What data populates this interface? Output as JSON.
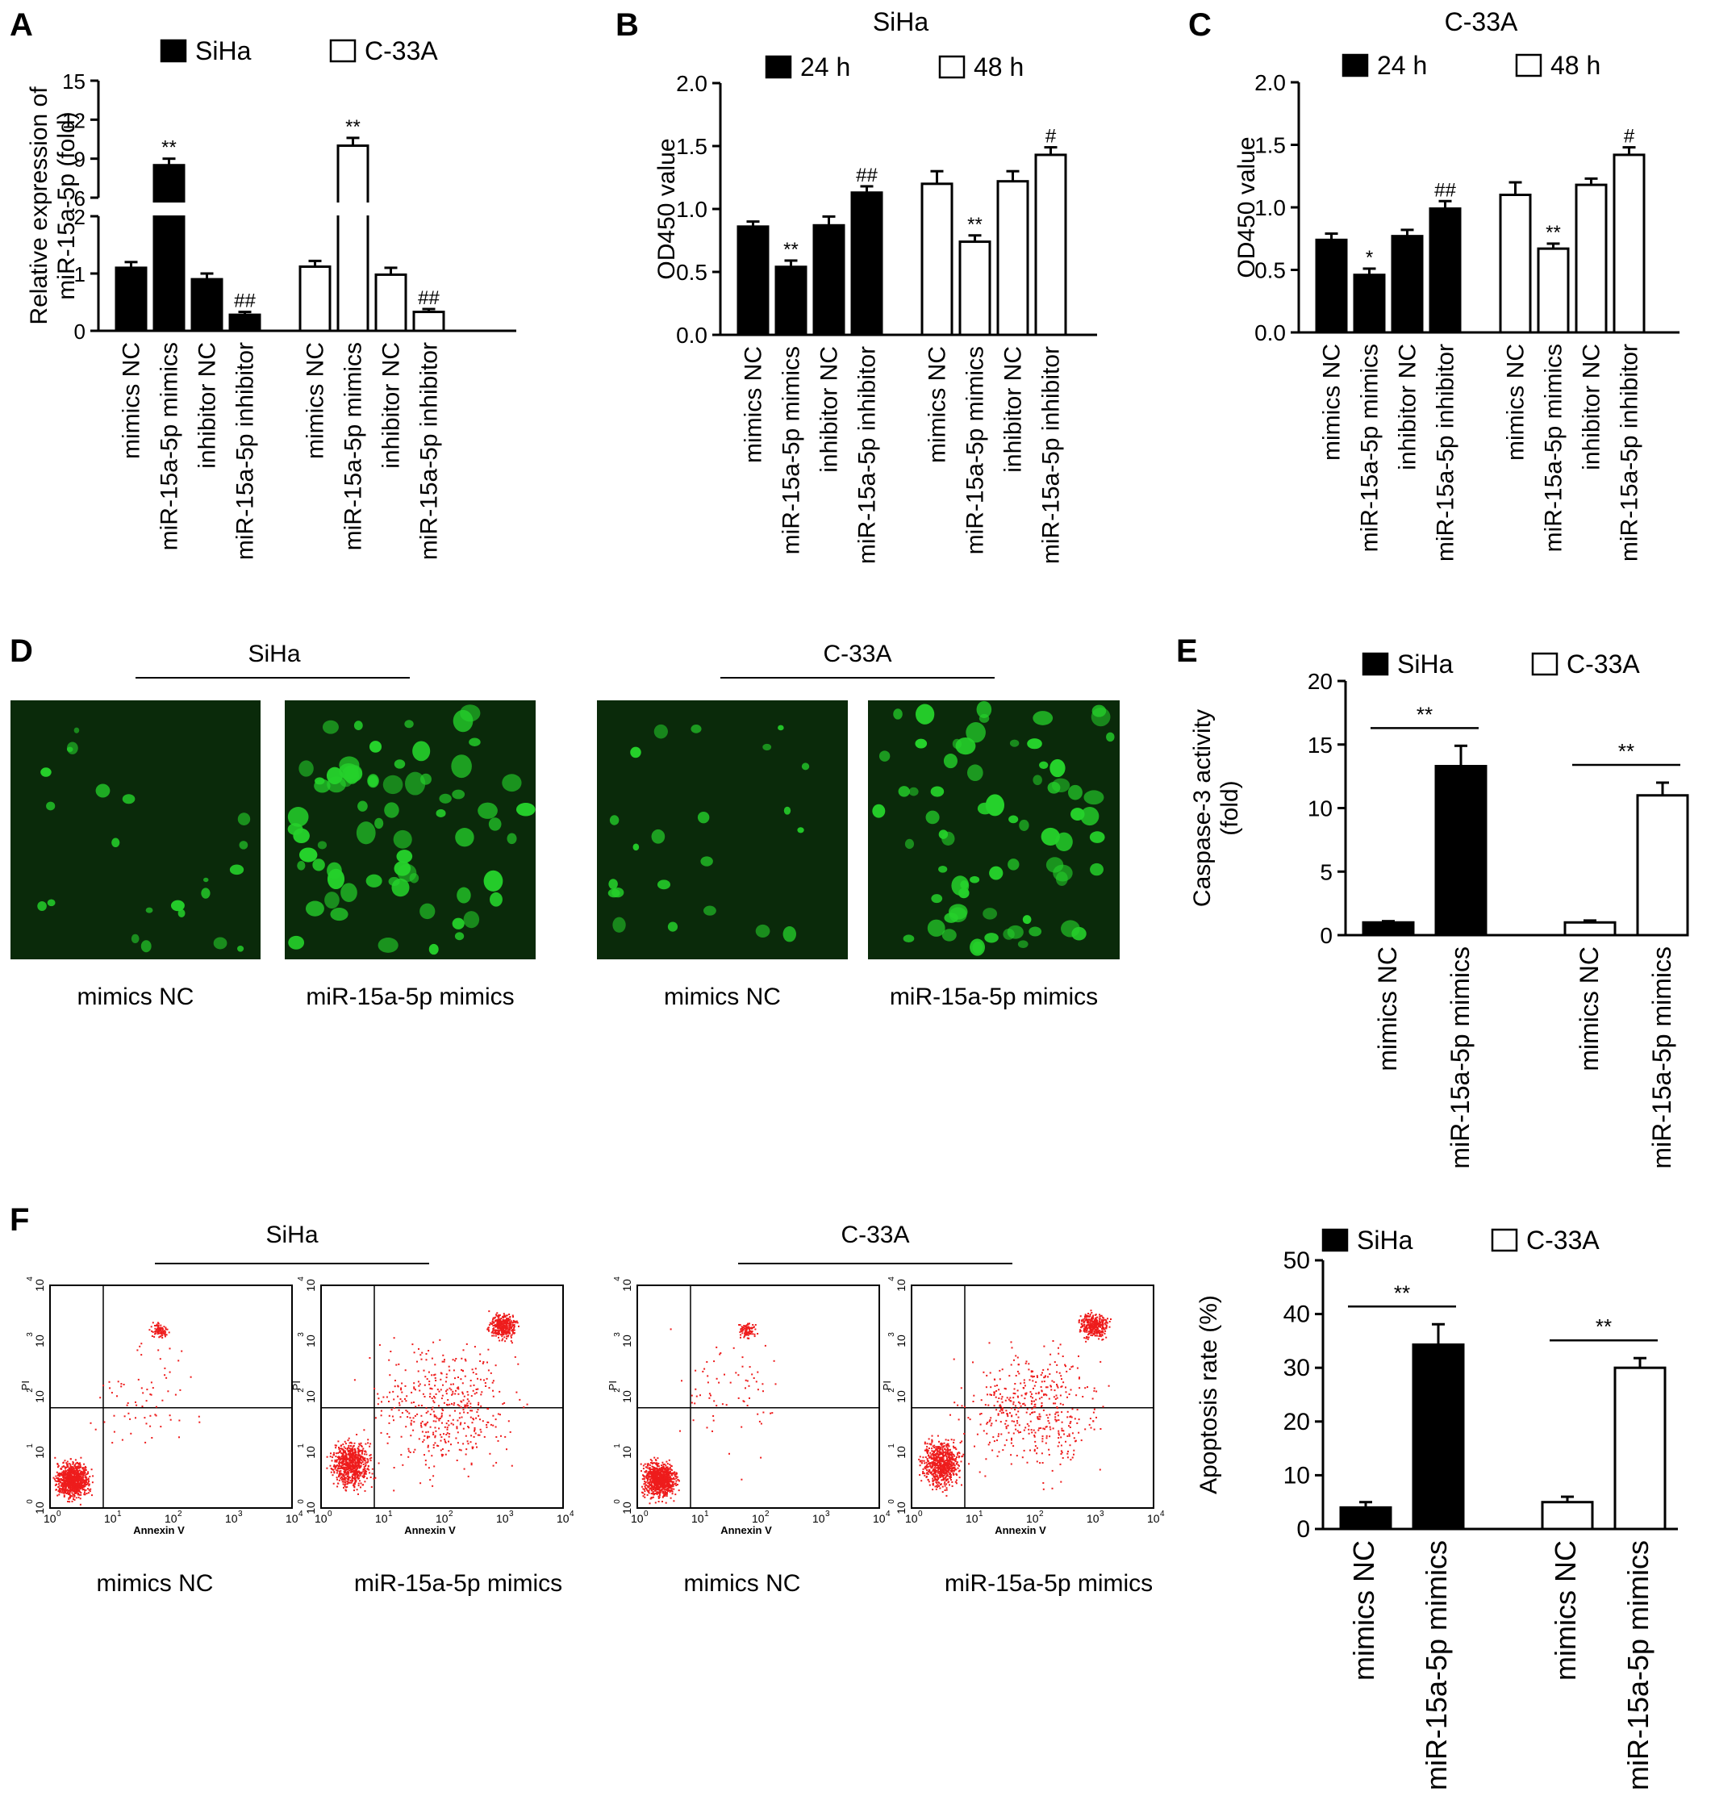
{
  "figure": {
    "panels": [
      {
        "id": "A",
        "letter": "A"
      },
      {
        "id": "B",
        "letter": "B"
      },
      {
        "id": "C",
        "letter": "C"
      },
      {
        "id": "D",
        "letter": "D"
      },
      {
        "id": "E",
        "letter": "E"
      },
      {
        "id": "F",
        "letter": "F"
      }
    ]
  },
  "colors": {
    "filled": "#000000",
    "open": "#ffffff",
    "fluorescence": "#25d12b",
    "flow_dots": "#ee1c1c",
    "image_bg": "#0a2a0a"
  },
  "chart_data": [
    {
      "panel": "A",
      "type": "bar",
      "title": "",
      "ylabel": "Relative expression of\nmiR-15a-5p (fold)",
      "ylim": [
        0,
        15
      ],
      "y_axis": "broken",
      "yticks": [
        "0",
        "1",
        "2",
        "6",
        "9",
        "12",
        "15"
      ],
      "legend": [
        {
          "name": "SiHa",
          "fill": "black"
        },
        {
          "name": "C-33A",
          "fill": "white"
        }
      ],
      "groups": [
        {
          "name": "SiHa",
          "fill": "black",
          "bars": [
            {
              "label": "mimics NC",
              "value": 1.1,
              "err": 0.1,
              "mark": ""
            },
            {
              "label": "miR-15a-5p mimics",
              "value": 8.5,
              "err": 0.5,
              "mark": "**"
            },
            {
              "label": "inhibitor NC",
              "value": 0.9,
              "err": 0.1,
              "mark": ""
            },
            {
              "label": "miR-15a-5p inhibitor",
              "value": 0.28,
              "err": 0.05,
              "mark": "##"
            }
          ]
        },
        {
          "name": "C-33A",
          "fill": "white",
          "bars": [
            {
              "label": "mimics NC",
              "value": 1.12,
              "err": 0.1,
              "mark": ""
            },
            {
              "label": "miR-15a-5p mimics",
              "value": 10.0,
              "err": 0.6,
              "mark": "**"
            },
            {
              "label": "inhibitor NC",
              "value": 0.98,
              "err": 0.12,
              "mark": ""
            },
            {
              "label": "miR-15a-5p inhibitor",
              "value": 0.33,
              "err": 0.05,
              "mark": "##"
            }
          ]
        }
      ]
    },
    {
      "panel": "B",
      "type": "bar",
      "title": "SiHa",
      "ylabel": "OD450 value",
      "ylim": [
        0,
        2.0
      ],
      "yticks": [
        "0.0",
        "0.5",
        "1.0",
        "1.5",
        "2.0"
      ],
      "legend": [
        {
          "name": "24 h",
          "fill": "black"
        },
        {
          "name": "48 h",
          "fill": "white"
        }
      ],
      "groups": [
        {
          "name": "24 h",
          "fill": "black",
          "bars": [
            {
              "label": "mimics NC",
              "value": 0.86,
              "err": 0.04,
              "mark": ""
            },
            {
              "label": "miR-15a-5p mimics",
              "value": 0.54,
              "err": 0.05,
              "mark": "**"
            },
            {
              "label": "inhibitor NC",
              "value": 0.87,
              "err": 0.07,
              "mark": ""
            },
            {
              "label": "miR-15a-5p inhibitor",
              "value": 1.13,
              "err": 0.05,
              "mark": "##"
            }
          ]
        },
        {
          "name": "48 h",
          "fill": "white",
          "bars": [
            {
              "label": "mimics NC",
              "value": 1.2,
              "err": 0.1,
              "mark": ""
            },
            {
              "label": "miR-15a-5p mimics",
              "value": 0.74,
              "err": 0.05,
              "mark": "**"
            },
            {
              "label": "inhibitor NC",
              "value": 1.22,
              "err": 0.08,
              "mark": ""
            },
            {
              "label": "miR-15a-5p inhibitor",
              "value": 1.43,
              "err": 0.06,
              "mark": "#"
            }
          ]
        }
      ]
    },
    {
      "panel": "C",
      "type": "bar",
      "title": "C-33A",
      "ylabel": "OD450 value",
      "ylim": [
        0,
        2.0
      ],
      "yticks": [
        "0.0",
        "0.5",
        "1.0",
        "1.5",
        "2.0"
      ],
      "legend": [
        {
          "name": "24 h",
          "fill": "black"
        },
        {
          "name": "48 h",
          "fill": "white"
        }
      ],
      "groups": [
        {
          "name": "24 h",
          "fill": "black",
          "bars": [
            {
              "label": "mimics NC",
              "value": 0.74,
              "err": 0.05,
              "mark": ""
            },
            {
              "label": "miR-15a-5p mimics",
              "value": 0.46,
              "err": 0.05,
              "mark": "*"
            },
            {
              "label": "inhibitor NC",
              "value": 0.77,
              "err": 0.05,
              "mark": ""
            },
            {
              "label": "miR-15a-5p inhibitor",
              "value": 0.99,
              "err": 0.06,
              "mark": "##"
            }
          ]
        },
        {
          "name": "48 h",
          "fill": "white",
          "bars": [
            {
              "label": "mimics NC",
              "value": 1.1,
              "err": 0.1,
              "mark": ""
            },
            {
              "label": "miR-15a-5p mimics",
              "value": 0.67,
              "err": 0.04,
              "mark": "**"
            },
            {
              "label": "inhibitor NC",
              "value": 1.18,
              "err": 0.05,
              "mark": ""
            },
            {
              "label": "miR-15a-5p inhibitor",
              "value": 1.42,
              "err": 0.06,
              "mark": "#"
            }
          ]
        }
      ]
    },
    {
      "panel": "E",
      "type": "bar",
      "title": "",
      "ylabel": "Caspase-3 activity\n(fold)",
      "ylim": [
        0,
        20
      ],
      "yticks": [
        "0",
        "5",
        "10",
        "15",
        "20"
      ],
      "legend": [
        {
          "name": "SiHa",
          "fill": "black"
        },
        {
          "name": "C-33A",
          "fill": "white"
        }
      ],
      "groups": [
        {
          "name": "SiHa",
          "fill": "black",
          "bars": [
            {
              "label": "mimics NC",
              "value": 1.0,
              "err": 0.1,
              "mark": ""
            },
            {
              "label": "miR-15a-5p mimics",
              "value": 13.3,
              "err": 1.6,
              "mark": ""
            }
          ]
        },
        {
          "name": "C-33A",
          "fill": "white",
          "bars": [
            {
              "label": "mimics NC",
              "value": 1.0,
              "err": 0.15,
              "mark": ""
            },
            {
              "label": "miR-15a-5p mimics",
              "value": 11.0,
              "err": 1.0,
              "mark": ""
            }
          ]
        }
      ],
      "brackets": [
        {
          "group": 0,
          "mark": "**"
        },
        {
          "group": 1,
          "mark": "**"
        }
      ]
    },
    {
      "panel": "F",
      "type": "bar",
      "title": "",
      "ylabel": "Apoptosis rate (%)",
      "ylim": [
        0,
        50
      ],
      "yticks": [
        "0",
        "10",
        "20",
        "30",
        "40",
        "50"
      ],
      "legend": [
        {
          "name": "SiHa",
          "fill": "black"
        },
        {
          "name": "C-33A",
          "fill": "white"
        }
      ],
      "groups": [
        {
          "name": "SiHa",
          "fill": "black",
          "bars": [
            {
              "label": "mimics NC",
              "value": 4.0,
              "err": 1.0,
              "mark": ""
            },
            {
              "label": "miR-15a-5p mimics",
              "value": 34.3,
              "err": 3.8,
              "mark": ""
            }
          ]
        },
        {
          "name": "C-33A",
          "fill": "white",
          "bars": [
            {
              "label": "mimics NC",
              "value": 5.0,
              "err": 1.0,
              "mark": ""
            },
            {
              "label": "miR-15a-5p mimics",
              "value": 30.0,
              "err": 1.8,
              "mark": ""
            }
          ]
        }
      ],
      "brackets": [
        {
          "group": 0,
          "mark": "**"
        },
        {
          "group": 1,
          "mark": "**"
        }
      ]
    }
  ],
  "panelD": {
    "groups": [
      {
        "name": "SiHa",
        "images": [
          {
            "caption": "mimics NC"
          },
          {
            "caption": "miR-15a-5p mimics"
          }
        ]
      },
      {
        "name": "C-33A",
        "images": [
          {
            "caption": "mimics NC"
          },
          {
            "caption": "miR-15a-5p mimics"
          }
        ]
      }
    ]
  },
  "panelF_flow": {
    "xlabel": "Annexin V",
    "ylabel": "PI",
    "ticks": [
      "10",
      "0",
      "1",
      "2",
      "3",
      "4"
    ],
    "tick_exps": [
      "0",
      "1",
      "2",
      "3",
      "4"
    ],
    "groups": [
      {
        "name": "SiHa",
        "plots": [
          {
            "caption": "mimics NC"
          },
          {
            "caption": "miR-15a-5p mimics"
          }
        ]
      },
      {
        "name": "C-33A",
        "plots": [
          {
            "caption": "mimics NC"
          },
          {
            "caption": "miR-15a-5p mimics"
          }
        ]
      }
    ]
  }
}
